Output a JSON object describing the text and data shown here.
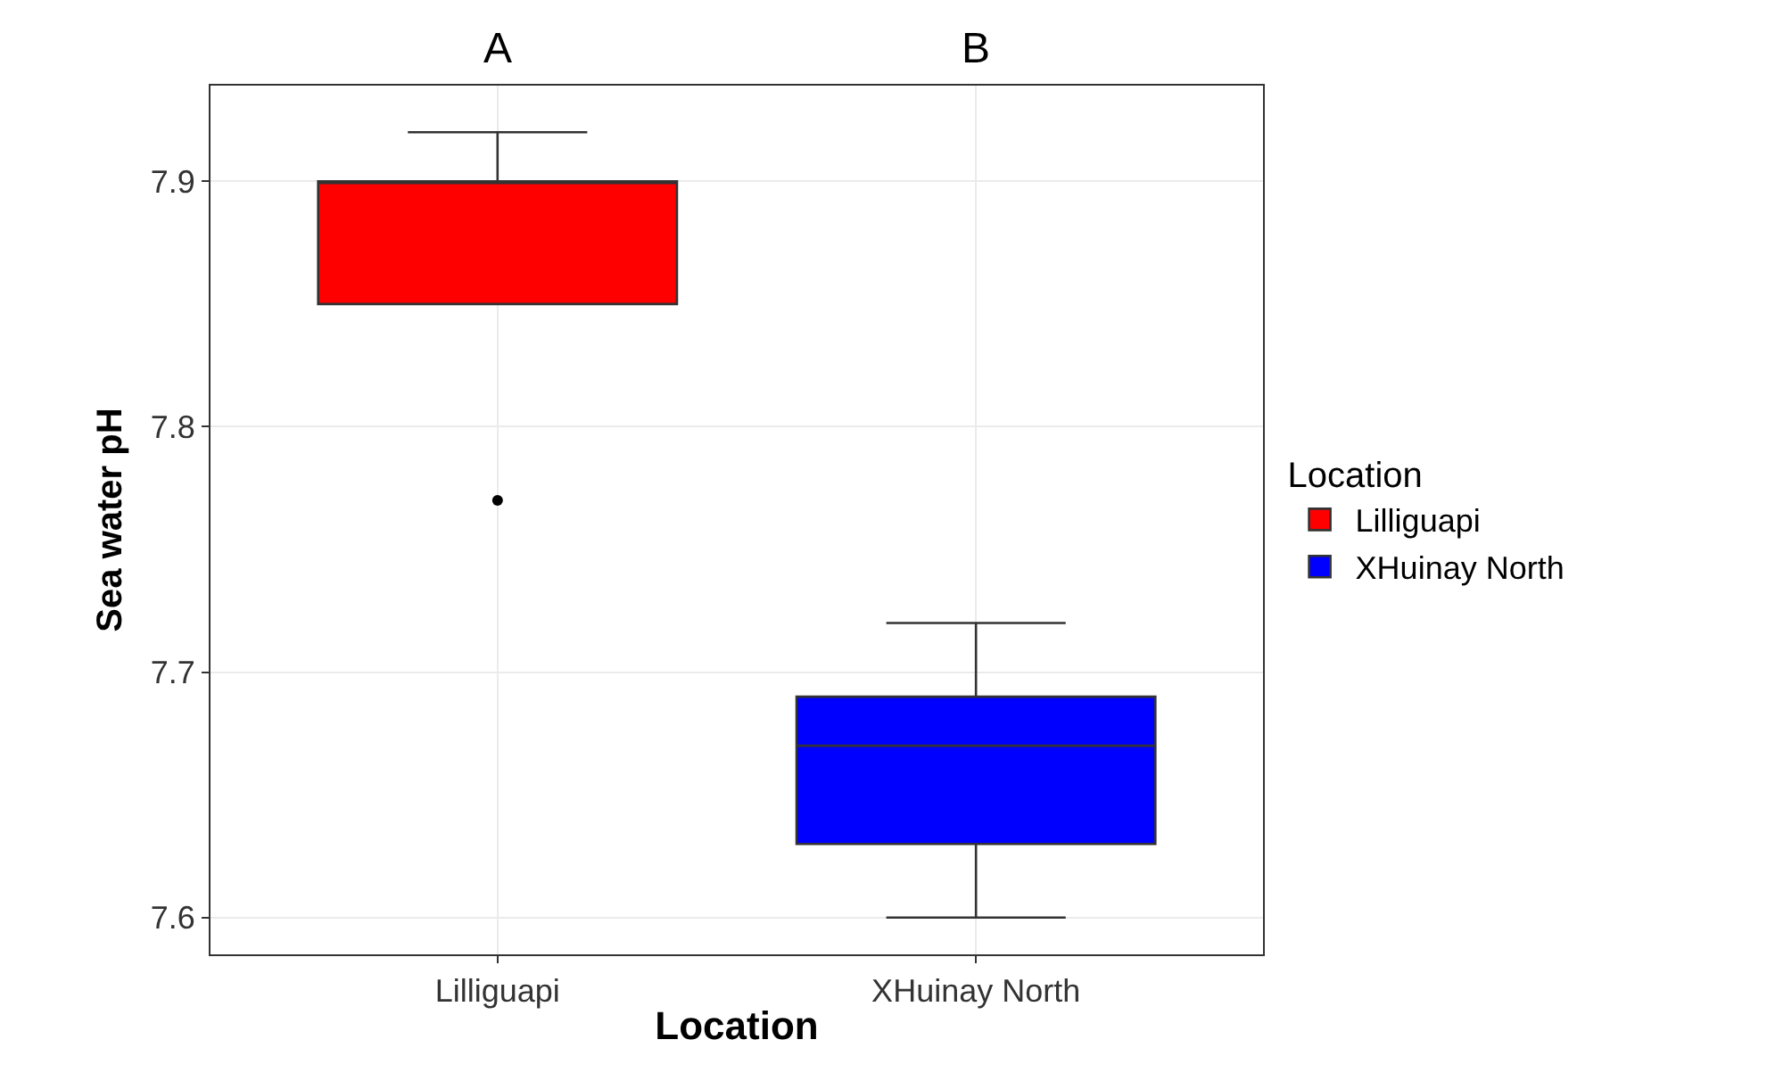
{
  "chart_data": {
    "type": "box",
    "xlabel": "Location",
    "ylabel": "Sea water pH",
    "legend_title": "Location",
    "legend": "right",
    "grid": true,
    "categories": [
      "Lilliguapi",
      "XHuinay North"
    ],
    "ylim": [
      7.585,
      7.939
    ],
    "yticks": [
      7.6,
      7.7,
      7.8,
      7.9
    ],
    "series": [
      {
        "name": "Lilliguapi",
        "color": "#ff0000",
        "boxes": [
          {
            "low": 7.85,
            "q1": 7.85,
            "median": 7.9,
            "q3": 7.9,
            "high": 7.92,
            "outliers": [
              7.77
            ]
          },
          null
        ]
      },
      {
        "name": "XHuinay North",
        "color": "#0000ff",
        "boxes": [
          null,
          {
            "low": 7.6,
            "q1": 7.63,
            "median": 7.67,
            "q3": 7.69,
            "high": 7.72
          }
        ]
      }
    ],
    "annotations": [
      "A",
      "B"
    ]
  }
}
